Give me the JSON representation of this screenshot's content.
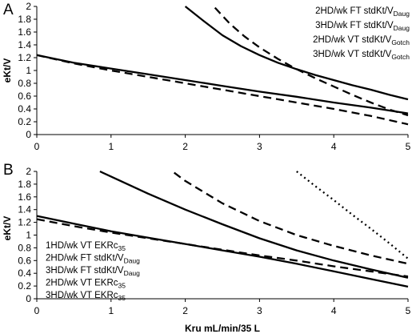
{
  "chart_data": [
    {
      "type": "line",
      "panel": "A",
      "xlabel": "",
      "ylabel": "eKt/V",
      "xlim": [
        0,
        5
      ],
      "ylim": [
        0,
        2
      ],
      "x_ticks": [
        "0",
        "1",
        "2",
        "3",
        "4",
        "5"
      ],
      "y_ticks": [
        "0",
        "0.2",
        "0.4",
        "0.6",
        "0.8",
        "1",
        "1.2",
        "1.4",
        "1.6",
        "1.8",
        "2"
      ],
      "grid": false,
      "legend_position": "top-right",
      "series": [
        {
          "name": "2HD/wk FT stdKt/V",
          "name_sub": "Daug",
          "style": "solid",
          "x": [
            2.0,
            2.25,
            2.5,
            2.75,
            3.0,
            3.25,
            3.5,
            3.75,
            4.0,
            4.25,
            4.5,
            4.75,
            5.0
          ],
          "y": [
            2.0,
            1.77,
            1.55,
            1.38,
            1.24,
            1.12,
            1.02,
            0.93,
            0.85,
            0.77,
            0.7,
            0.62,
            0.55
          ]
        },
        {
          "name": "3HD/wk FT stdKt/V",
          "name_sub": "Daug",
          "style": "dashed",
          "x": [
            2.4,
            2.6,
            2.8,
            3.0,
            3.25,
            3.5,
            3.75,
            4.0,
            4.25,
            4.5,
            4.75,
            5.0
          ],
          "y": [
            1.98,
            1.73,
            1.53,
            1.36,
            1.18,
            1.02,
            0.88,
            0.75,
            0.62,
            0.5,
            0.39,
            0.3
          ]
        },
        {
          "name": "2HD/wk VT stdKt/V",
          "name_sub": "Gotch",
          "style": "solid",
          "x": [
            0,
            0.5,
            1.0,
            1.5,
            2.0,
            2.5,
            3.0,
            3.5,
            4.0,
            4.5,
            5.0
          ],
          "y": [
            1.24,
            1.12,
            1.03,
            0.94,
            0.85,
            0.76,
            0.67,
            0.59,
            0.5,
            0.42,
            0.33
          ]
        },
        {
          "name": "3HD/wk VT stdKt/V",
          "name_sub": "Gotch",
          "style": "dashed",
          "x": [
            0,
            0.5,
            1.0,
            1.5,
            2.0,
            2.5,
            3.0,
            3.5,
            4.0,
            4.5,
            5.0
          ],
          "y": [
            1.24,
            1.11,
            1.0,
            0.9,
            0.8,
            0.7,
            0.6,
            0.5,
            0.4,
            0.29,
            0.16
          ]
        }
      ]
    },
    {
      "type": "line",
      "panel": "B",
      "xlabel": "Kru mL/min/35 L",
      "ylabel": "eKt/V",
      "xlim": [
        0,
        5
      ],
      "ylim": [
        0,
        2
      ],
      "x_ticks": [
        "0",
        "1",
        "2",
        "3",
        "4",
        "5"
      ],
      "y_ticks": [
        "0",
        "0.2",
        "0.4",
        "0.6",
        "0.8",
        "1",
        "1.2",
        "1.4",
        "1.6",
        "1.8",
        "2"
      ],
      "grid": false,
      "legend_position": "bottom-left",
      "series": [
        {
          "name": "1HD/wk VT EKRc",
          "name_sub": "35",
          "style": "dotted",
          "x": [
            3.5,
            3.75,
            4.0,
            4.25,
            4.5,
            4.75,
            5.0
          ],
          "y": [
            2.0,
            1.77,
            1.55,
            1.32,
            1.1,
            0.87,
            0.63
          ]
        },
        {
          "name": "2HD/wk FT stdKt/V",
          "name_sub": "Daug",
          "style": "dashed",
          "x": [
            1.85,
            2.0,
            2.5,
            3.0,
            3.5,
            4.0,
            4.5,
            5.0
          ],
          "y": [
            1.98,
            1.85,
            1.5,
            1.22,
            1.0,
            0.83,
            0.68,
            0.55
          ]
        },
        {
          "name": "3HD/wk FT stdKt/V",
          "name_sub": "Daug",
          "style": "solid",
          "x": [
            0.85,
            1.0,
            1.5,
            2.0,
            2.5,
            3.0,
            3.5,
            4.0,
            4.5,
            5.0
          ],
          "y": [
            2.0,
            1.92,
            1.65,
            1.4,
            1.17,
            0.95,
            0.76,
            0.6,
            0.46,
            0.33
          ]
        },
        {
          "name": "2HD/wk VT EKRc",
          "name_sub": "35",
          "style": "dashed",
          "x": [
            0,
            0.5,
            1.0,
            1.5,
            2.0,
            2.5,
            3.0,
            3.5,
            4.0,
            4.5,
            5.0
          ],
          "y": [
            1.25,
            1.14,
            1.04,
            0.95,
            0.86,
            0.77,
            0.68,
            0.6,
            0.51,
            0.43,
            0.35
          ]
        },
        {
          "name": "3HD/wk VT EKRc",
          "name_sub": "35",
          "style": "solid",
          "x": [
            0,
            0.5,
            1.0,
            1.5,
            2.0,
            2.5,
            3.0,
            3.5,
            4.0,
            4.5,
            5.0
          ],
          "y": [
            1.3,
            1.18,
            1.06,
            0.96,
            0.86,
            0.76,
            0.66,
            0.55,
            0.43,
            0.31,
            0.19
          ]
        }
      ]
    }
  ]
}
